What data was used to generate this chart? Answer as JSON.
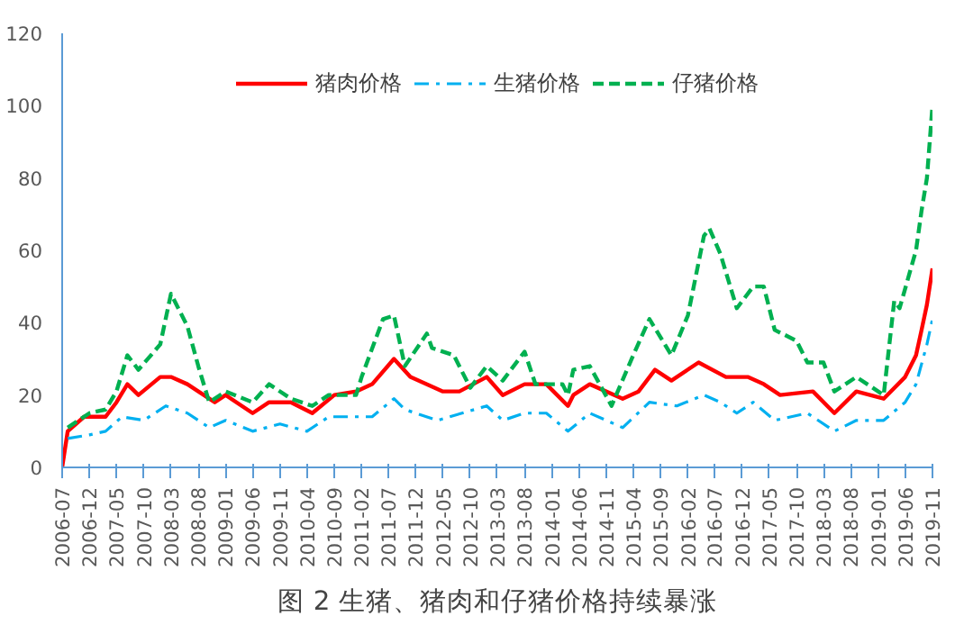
{
  "chart_data": {
    "type": "line",
    "title": "图 2 生猪、猪肉和仔猪价格持续暴涨",
    "xlim": [
      "2006-07",
      "2019-11"
    ],
    "xticks": [
      {
        "value": "2006-07",
        "label": "2006-07"
      },
      {
        "value": "2006-12",
        "label": "2006-12"
      },
      {
        "value": "2007-05",
        "label": "2007-05"
      },
      {
        "value": "2007-10",
        "label": "2007-10"
      },
      {
        "value": "2008-03",
        "label": "2008-03"
      },
      {
        "value": "2008-08",
        "label": "2008-08"
      },
      {
        "value": "2009-01",
        "label": "2009-01"
      },
      {
        "value": "2009-06",
        "label": "2009-06"
      },
      {
        "value": "2009-11",
        "label": "2009-11"
      },
      {
        "value": "2010-04",
        "label": "2010-04"
      },
      {
        "value": "2010-09",
        "label": "2010-09"
      },
      {
        "value": "2011-02",
        "label": "2011-02"
      },
      {
        "value": "2011-07",
        "label": "2011-07"
      },
      {
        "value": "2011-12",
        "label": "2011-12"
      },
      {
        "value": "2012-05",
        "label": "2012-05"
      },
      {
        "value": "2012-10",
        "label": "2012-10"
      },
      {
        "value": "2013-03",
        "label": "2013-03"
      },
      {
        "value": "2013-08",
        "label": "2013-08"
      },
      {
        "value": "2014-01",
        "label": "2014-01"
      },
      {
        "value": "2014-06",
        "label": "2014-06"
      },
      {
        "value": "2014-11",
        "label": "2014-11"
      },
      {
        "value": "2015-04",
        "label": "2015-04"
      },
      {
        "value": "2015-09",
        "label": "2015-09"
      },
      {
        "value": "2016-02",
        "label": "2016-02"
      },
      {
        "value": "2016-07",
        "label": "2016-07"
      },
      {
        "value": "2016-12",
        "label": "2016-12"
      },
      {
        "value": "2017-05",
        "label": "2017-05"
      },
      {
        "value": "2017-10",
        "label": "2017-10"
      },
      {
        "value": "2018-03",
        "label": "2018-03"
      },
      {
        "value": "2018-08",
        "label": "2018-08"
      },
      {
        "value": "2019-01",
        "label": "2019-01"
      },
      {
        "value": "2019-06",
        "label": "2019-06"
      },
      {
        "value": "2019-11",
        "label": "2019-11"
      }
    ],
    "ylim": [
      0,
      120
    ],
    "yticks": [
      0,
      20,
      40,
      60,
      80,
      100,
      120
    ],
    "grid": false,
    "legend": "top",
    "series": [
      {
        "name": "猪肉价格",
        "color": "#ff0000",
        "line_style": "solid",
        "x": [
          "2006-07",
          "2006-08",
          "2006-11",
          "2007-03",
          "2007-05",
          "2007-07",
          "2007-09",
          "2008-01",
          "2008-03",
          "2008-06",
          "2008-08",
          "2008-11",
          "2009-01",
          "2009-06",
          "2009-09",
          "2010-01",
          "2010-05",
          "2010-09",
          "2011-01",
          "2011-04",
          "2011-08",
          "2011-11",
          "2012-05",
          "2012-08",
          "2013-01",
          "2013-04",
          "2013-08",
          "2013-12",
          "2014-04",
          "2014-05",
          "2014-08",
          "2015-02",
          "2015-05",
          "2015-08",
          "2015-11",
          "2016-04",
          "2016-09",
          "2017-01",
          "2017-04",
          "2017-07",
          "2018-01",
          "2018-05",
          "2018-09",
          "2019-02",
          "2019-06",
          "2019-08",
          "2019-09",
          "2019-10",
          "2019-11"
        ],
        "values": [
          0,
          10,
          14,
          14,
          18,
          23,
          20,
          25,
          25,
          23,
          21,
          18,
          20,
          15,
          18,
          18,
          15,
          20,
          21,
          23,
          30,
          25,
          21,
          21,
          25,
          20,
          23,
          23,
          17,
          20,
          23,
          19,
          21,
          27,
          24,
          29,
          25,
          25,
          23,
          20,
          21,
          15,
          21,
          19,
          25,
          31,
          38,
          45,
          55
        ]
      },
      {
        "name": "生猪价格",
        "color": "#00b0f0",
        "line_style": "dashdot",
        "x": [
          "2006-08",
          "2006-12",
          "2007-03",
          "2007-06",
          "2007-10",
          "2008-02",
          "2008-06",
          "2008-10",
          "2009-01",
          "2009-06",
          "2009-11",
          "2010-04",
          "2010-08",
          "2011-01",
          "2011-04",
          "2011-08",
          "2011-10",
          "2012-04",
          "2013-01",
          "2013-04",
          "2013-08",
          "2013-12",
          "2014-04",
          "2014-08",
          "2015-02",
          "2015-07",
          "2015-12",
          "2016-05",
          "2016-08",
          "2016-11",
          "2017-02",
          "2017-06",
          "2017-12",
          "2018-05",
          "2018-09",
          "2019-02",
          "2019-06",
          "2019-08",
          "2019-10",
          "2019-11"
        ],
        "values": [
          8,
          9,
          10,
          14,
          13,
          17,
          15,
          11,
          13,
          10,
          12,
          10,
          14,
          14,
          14,
          19,
          16,
          13,
          17,
          13,
          15,
          15,
          10,
          15,
          11,
          18,
          17,
          20,
          18,
          15,
          18,
          13,
          15,
          10,
          13,
          13,
          18,
          23,
          34,
          41
        ]
      },
      {
        "name": "仔猪价格",
        "color": "#00b050",
        "line_style": "dashed",
        "x": [
          "2006-08",
          "2006-12",
          "2007-03",
          "2007-05",
          "2007-07",
          "2007-09",
          "2008-01",
          "2008-03",
          "2008-06",
          "2008-08",
          "2008-10",
          "2009-01",
          "2009-06",
          "2009-09",
          "2010-01",
          "2010-05",
          "2010-08",
          "2011-01",
          "2011-02",
          "2011-06",
          "2011-08",
          "2011-10",
          "2012-02",
          "2012-03",
          "2012-07",
          "2012-10",
          "2013-01",
          "2013-04",
          "2013-08",
          "2013-10",
          "2014-03",
          "2014-04",
          "2014-05",
          "2014-08",
          "2014-12",
          "2015-04",
          "2015-07",
          "2015-11",
          "2016-02",
          "2016-05",
          "2016-06",
          "2016-08",
          "2016-11",
          "2017-02",
          "2017-04",
          "2017-06",
          "2017-10",
          "2017-12",
          "2018-03",
          "2018-05",
          "2018-09",
          "2019-02",
          "2019-04",
          "2019-05",
          "2019-08",
          "2019-09",
          "2019-10",
          "2019-11"
        ],
        "values": [
          11,
          15,
          16,
          21,
          31,
          27,
          34,
          48,
          39,
          28,
          18,
          21,
          18,
          23,
          19,
          17,
          20,
          20,
          25,
          41,
          42,
          28,
          37,
          33,
          31,
          22,
          28,
          24,
          32,
          23,
          23,
          20,
          27,
          28,
          17,
          31,
          41,
          31,
          42,
          64,
          66,
          59,
          44,
          50,
          50,
          38,
          35,
          29,
          29,
          21,
          25,
          20,
          46,
          44,
          60,
          71,
          80,
          100
        ]
      }
    ]
  }
}
